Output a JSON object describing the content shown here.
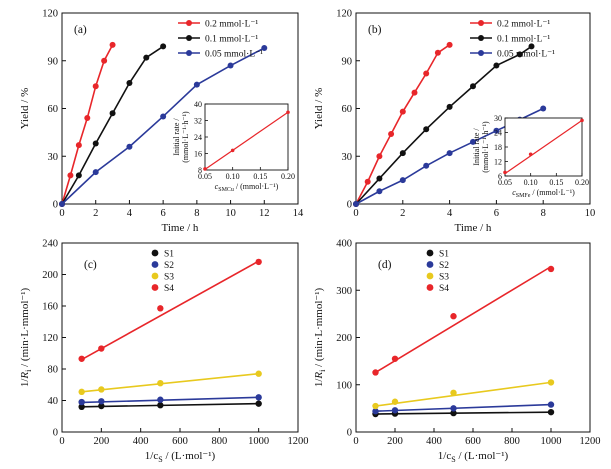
{
  "chart_data": [
    {
      "panel": "(a)",
      "type": "line",
      "xlabel": "Time / h",
      "ylabel": "Yield / %",
      "xlim": [
        0,
        14
      ],
      "ylim": [
        0,
        120
      ],
      "xticks": [
        0,
        2,
        4,
        6,
        8,
        10,
        12,
        14
      ],
      "yticks": [
        0,
        30,
        60,
        90,
        120
      ],
      "legend_position": "top-right",
      "series": [
        {
          "name": "0.2 mmol·L⁻¹",
          "color": "#e8262a",
          "marker": "circle",
          "x": [
            0,
            0.5,
            1,
            1.5,
            2,
            2.5,
            3
          ],
          "y": [
            0,
            18,
            37,
            54,
            74,
            90,
            100
          ]
        },
        {
          "name": "0.1 mmol·L⁻¹",
          "color": "#111111",
          "marker": "circle",
          "x": [
            0,
            1,
            2,
            3,
            4,
            5,
            6
          ],
          "y": [
            0,
            18,
            38,
            57,
            76,
            92,
            99
          ]
        },
        {
          "name": "0.05 mmol·L⁻¹",
          "color": "#2b3a9a",
          "marker": "circle",
          "x": [
            0,
            2,
            4,
            6,
            8,
            10,
            12
          ],
          "y": [
            0,
            20,
            36,
            55,
            75,
            87,
            98
          ]
        }
      ],
      "inset": {
        "type": "scatter-fit",
        "xlabel_parts": [
          "c",
          "SMCu",
          " / (mmol·L⁻¹)"
        ],
        "ylabel_lines": [
          "Initial rate /",
          "(mmol·L⁻¹·h⁻¹)"
        ],
        "xlim": [
          0.05,
          0.2
        ],
        "ylim": [
          8,
          40
        ],
        "xticks": [
          0.05,
          0.1,
          0.15,
          0.2
        ],
        "yticks": [
          8,
          16,
          24,
          32,
          40
        ],
        "points": [
          [
            0.05,
            8.5
          ],
          [
            0.1,
            17.5
          ],
          [
            0.2,
            36
          ]
        ],
        "fit_line": [
          [
            0.05,
            8.3
          ],
          [
            0.2,
            36
          ]
        ]
      }
    },
    {
      "panel": "(b)",
      "type": "line",
      "xlabel": "Time / h",
      "ylabel": "Yield / %",
      "xlim": [
        0,
        10
      ],
      "ylim": [
        0,
        120
      ],
      "xticks": [
        0,
        2,
        4,
        6,
        8,
        10
      ],
      "yticks": [
        0,
        30,
        60,
        90,
        120
      ],
      "legend_position": "top-right",
      "series": [
        {
          "name": "0.2 mmol·L⁻¹",
          "color": "#e8262a",
          "marker": "circle",
          "x": [
            0,
            0.5,
            1,
            1.5,
            2,
            2.5,
            3,
            3.5,
            4
          ],
          "y": [
            0,
            14,
            30,
            44,
            58,
            70,
            82,
            95,
            100
          ]
        },
        {
          "name": "0.1 mmol·L⁻¹",
          "color": "#111111",
          "marker": "circle",
          "x": [
            0,
            1,
            2,
            3,
            4,
            5,
            6,
            7,
            7.5
          ],
          "y": [
            0,
            16,
            32,
            47,
            61,
            74,
            87,
            94,
            99
          ]
        },
        {
          "name": "0.05 mmol·L⁻¹",
          "color": "#2b3a9a",
          "marker": "circle",
          "x": [
            0,
            1,
            2,
            3,
            4,
            5,
            6,
            7,
            8
          ],
          "y": [
            0,
            8,
            15,
            24,
            32,
            39,
            46,
            53,
            60
          ]
        }
      ],
      "inset": {
        "type": "scatter-fit",
        "xlabel_parts": [
          "c",
          "SMFe",
          " / (mmol·L⁻¹)"
        ],
        "ylabel_lines": [
          "Initial rate /",
          "(mmol·L⁻¹·h⁻¹)"
        ],
        "xlim": [
          0.05,
          0.2
        ],
        "ylim": [
          6,
          30
        ],
        "xticks": [
          0.05,
          0.1,
          0.15,
          0.2
        ],
        "yticks": [
          6,
          12,
          18,
          24,
          30
        ],
        "points": [
          [
            0.05,
            7.5
          ],
          [
            0.1,
            15
          ],
          [
            0.2,
            29
          ]
        ],
        "fit_line": [
          [
            0.05,
            7
          ],
          [
            0.2,
            29
          ]
        ]
      }
    },
    {
      "panel": "(c)",
      "type": "scatter",
      "xlabel_parts": [
        "1/c",
        "S",
        " / (L·mol⁻¹)"
      ],
      "ylabel_parts": [
        "1/",
        "R",
        "i",
        " / (min·L·mmol⁻¹)"
      ],
      "xlim": [
        0,
        1200
      ],
      "ylim": [
        0,
        240
      ],
      "xticks": [
        0,
        200,
        400,
        600,
        800,
        1000,
        1200
      ],
      "yticks": [
        0,
        40,
        80,
        120,
        160,
        200,
        240
      ],
      "legend_position": "top-left",
      "series": [
        {
          "name": "S1",
          "color": "#111111",
          "x": [
            100,
            200,
            500,
            1000
          ],
          "y": [
            32,
            33,
            34,
            36
          ],
          "fit": [
            [
              100,
              32
            ],
            [
              1000,
              36
            ]
          ]
        },
        {
          "name": "S2",
          "color": "#2b3a9a",
          "x": [
            100,
            200,
            500,
            1000
          ],
          "y": [
            38,
            39,
            41,
            44
          ],
          "fit": [
            [
              100,
              37.5
            ],
            [
              1000,
              44
            ]
          ]
        },
        {
          "name": "S3",
          "color": "#e8c91e",
          "x": [
            100,
            200,
            500,
            1000
          ],
          "y": [
            51,
            54,
            62,
            74
          ],
          "fit": [
            [
              100,
              51
            ],
            [
              1000,
              74
            ]
          ]
        },
        {
          "name": "S4",
          "color": "#e8262a",
          "x": [
            100,
            200,
            500,
            1000
          ],
          "y": [
            93,
            106,
            157,
            216
          ],
          "fit": [
            [
              100,
              92
            ],
            [
              1000,
              217
            ]
          ]
        }
      ]
    },
    {
      "panel": "(d)",
      "type": "scatter",
      "xlabel_parts": [
        "1/c",
        "S",
        " / (L·mol⁻¹)"
      ],
      "ylabel_parts": [
        "1/",
        "R",
        "i",
        " / (min·L·mmol⁻¹)"
      ],
      "xlim": [
        0,
        1200
      ],
      "ylim": [
        0,
        400
      ],
      "xticks": [
        0,
        200,
        400,
        600,
        800,
        1000,
        1200
      ],
      "yticks": [
        0,
        100,
        200,
        300,
        400
      ],
      "legend_position": "top-left",
      "series": [
        {
          "name": "S1",
          "color": "#111111",
          "x": [
            100,
            200,
            500,
            1000
          ],
          "y": [
            38,
            39,
            40,
            42
          ],
          "fit": [
            [
              100,
              38
            ],
            [
              1000,
              42
            ]
          ]
        },
        {
          "name": "S2",
          "color": "#2b3a9a",
          "x": [
            100,
            200,
            500,
            1000
          ],
          "y": [
            44,
            46,
            50,
            58
          ],
          "fit": [
            [
              100,
              44
            ],
            [
              1000,
              58
            ]
          ]
        },
        {
          "name": "S3",
          "color": "#e8c91e",
          "x": [
            100,
            200,
            500,
            1000
          ],
          "y": [
            55,
            64,
            83,
            105
          ],
          "fit": [
            [
              100,
              55
            ],
            [
              1000,
              105
            ]
          ]
        },
        {
          "name": "S4",
          "color": "#e8262a",
          "x": [
            100,
            200,
            500,
            1000
          ],
          "y": [
            126,
            155,
            245,
            345
          ],
          "fit": [
            [
              100,
              126
            ],
            [
              1000,
              350
            ]
          ]
        }
      ]
    }
  ]
}
